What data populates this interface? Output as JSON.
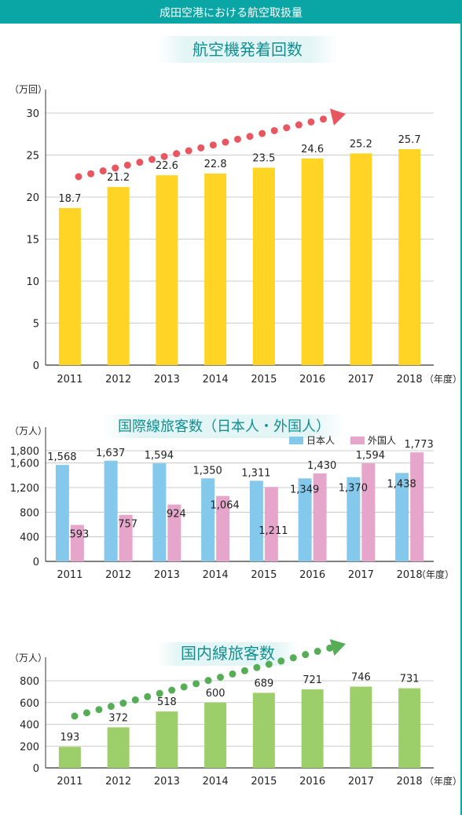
{
  "header": {
    "title": "成田空港における航空取扱量"
  },
  "chart_data": [
    {
      "type": "bar",
      "title": "航空機発着回数",
      "ylabel": "（万回）",
      "xunit": "（年度）",
      "categories": [
        "2011",
        "2012",
        "2013",
        "2014",
        "2015",
        "2016",
        "2017",
        "2018"
      ],
      "values": [
        18.7,
        21.2,
        22.6,
        22.8,
        23.5,
        24.6,
        25.2,
        25.7
      ],
      "value_labels": [
        "18.7",
        "21.2",
        "22.6",
        "22.8",
        "23.5",
        "24.6",
        "25.2",
        "25.7"
      ],
      "yticks": [
        "0",
        "5",
        "10",
        "15",
        "20",
        "25",
        "30"
      ],
      "ylim": [
        0,
        30
      ],
      "color": "#ffd424",
      "arrow_color": "#e8575f",
      "grid": true
    },
    {
      "type": "bar",
      "title": "国際線旅客数（日本人・外国人）",
      "ylabel": "（万人）",
      "xunit": "（年度）",
      "categories": [
        "2011",
        "2012",
        "2013",
        "2014",
        "2015",
        "2016",
        "2017",
        "2018"
      ],
      "series": [
        {
          "name": "日本人",
          "color": "#84c8ec",
          "values": [
            1568,
            1637,
            1594,
            1350,
            1311,
            1349,
            1370,
            1438
          ],
          "labels": [
            "1,568",
            "1,637",
            "1,594",
            "1,350",
            "1,311",
            "1,349",
            "1,370",
            "1,438"
          ]
        },
        {
          "name": "外国人",
          "color": "#e6a6cb",
          "values": [
            593,
            757,
            924,
            1064,
            1211,
            1430,
            1594,
            1773
          ],
          "labels": [
            "593",
            "757",
            "924",
            "1,064",
            "1,211",
            "1,430",
            "1,594",
            "1,773"
          ]
        }
      ],
      "yticks": [
        "0",
        "400",
        "800",
        "1,200",
        "1,600",
        "1,800"
      ],
      "ylim": [
        0,
        1800
      ],
      "grid": true,
      "legend": "top-right"
    },
    {
      "type": "bar",
      "title": "国内線旅客数",
      "ylabel": "（万人）",
      "xunit": "（年度）",
      "categories": [
        "2011",
        "2012",
        "2013",
        "2014",
        "2015",
        "2016",
        "2017",
        "2018"
      ],
      "values": [
        193,
        372,
        518,
        600,
        689,
        721,
        746,
        731
      ],
      "value_labels": [
        "193",
        "372",
        "518",
        "600",
        "689",
        "721",
        "746",
        "731"
      ],
      "yticks": [
        "0",
        "200",
        "400",
        "600",
        "800"
      ],
      "ylim": [
        0,
        800
      ],
      "color": "#9ccf6a",
      "arrow_color": "#56ad56",
      "grid": true
    }
  ]
}
